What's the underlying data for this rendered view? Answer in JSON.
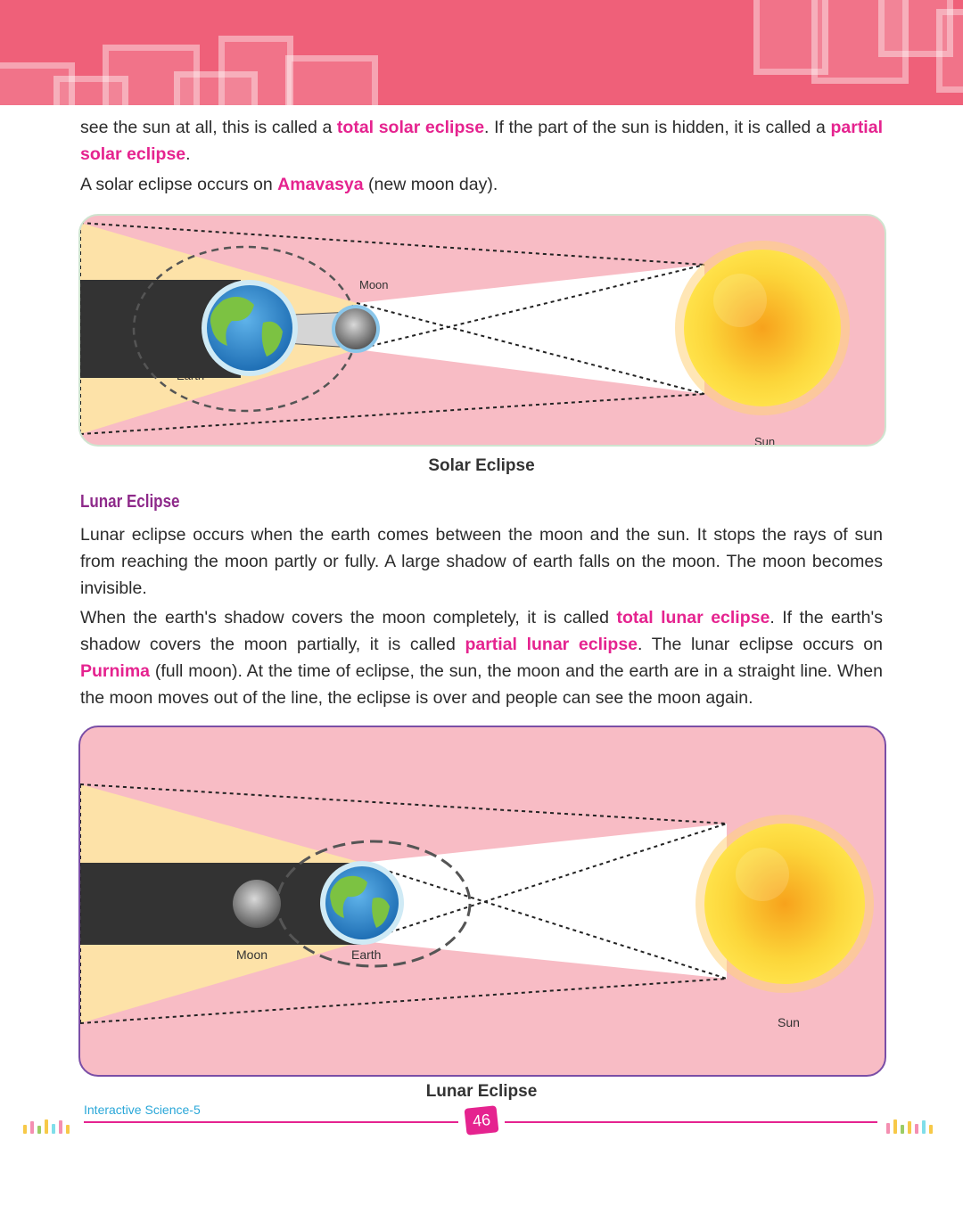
{
  "intro": {
    "p1": [
      {
        "t": "see the sun at all, this is called a ",
        "hl": false
      },
      {
        "t": "total solar eclipse",
        "hl": true
      },
      {
        "t": ". If the part of the sun is hidden, it is called a ",
        "hl": false
      },
      {
        "t": "partial solar eclipse",
        "hl": true
      },
      {
        "t": ".",
        "hl": false
      }
    ],
    "p2": [
      {
        "t": "A solar eclipse occurs on ",
        "hl": false
      },
      {
        "t": "Amavasya",
        "hl": true
      },
      {
        "t": " (new moon day).",
        "hl": false
      }
    ]
  },
  "solar_diagram": {
    "moon_label": "Moon",
    "earth_label": "Earth",
    "sun_label": "Sun",
    "caption": "Solar Eclipse"
  },
  "lunar_section": {
    "title": "Lunar Eclipse",
    "p1": [
      {
        "t": "Lunar eclipse occurs when the earth comes between the moon and the sun. It stops the rays of sun from reaching the moon partly or fully. A large shadow of earth falls on the moon. The moon becomes invisible.",
        "hl": false
      }
    ],
    "p2": [
      {
        "t": "When the earth's shadow covers the moon completely, it is called ",
        "hl": false
      },
      {
        "t": "total lunar eclipse",
        "hl": true
      },
      {
        "t": ". If the earth's shadow covers the moon partially, it is called ",
        "hl": false
      },
      {
        "t": "partial lunar eclipse",
        "hl": true
      },
      {
        "t": ". The lunar eclipse occurs on ",
        "hl": false
      },
      {
        "t": "Purnima",
        "hl": true
      },
      {
        "t": " (full moon). At the time of eclipse, the sun, the moon and the earth are in a straight line. When the moon moves out of the line, the eclipse is over and people can see the moon again.",
        "hl": false
      }
    ]
  },
  "lunar_diagram": {
    "moon_label": "Moon",
    "earth_label": "Earth",
    "sun_label": "Sun",
    "caption": "Lunar Eclipse"
  },
  "footer": {
    "book_title": "Interactive Science-5",
    "page_number": "46"
  },
  "colors": {
    "accent": "#e5238f",
    "header": "#ef6079",
    "diagram_bg": "#f8bcc5",
    "section_title": "#8e2a8a"
  }
}
